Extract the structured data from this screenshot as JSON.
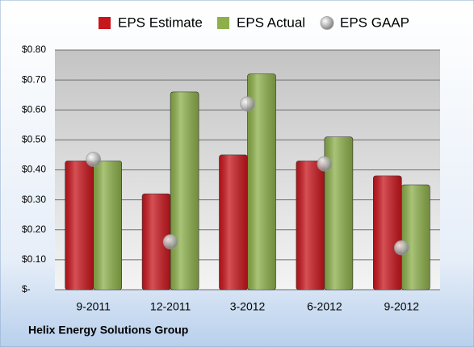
{
  "chart_data": {
    "type": "bar",
    "title": "Helix Energy Solutions Group",
    "categories": [
      "9-2011",
      "12-2011",
      "3-2012",
      "6-2012",
      "9-2012"
    ],
    "series": [
      {
        "name": "EPS Estimate",
        "type": "bar",
        "color": "#c8161d",
        "values": [
          0.43,
          0.32,
          0.45,
          0.43,
          0.38
        ]
      },
      {
        "name": "EPS Actual",
        "type": "bar",
        "color": "#8db04b",
        "values": [
          0.43,
          0.66,
          0.72,
          0.51,
          0.35
        ]
      },
      {
        "name": "EPS GAAP",
        "type": "scatter",
        "color": "#9a9a9a",
        "values": [
          0.435,
          0.16,
          0.62,
          0.42,
          0.14
        ]
      }
    ],
    "ylim": [
      0,
      0.8
    ],
    "yticks": [
      {
        "value": 0,
        "label": "$-"
      },
      {
        "value": 0.1,
        "label": "$0.10"
      },
      {
        "value": 0.2,
        "label": "$0.20"
      },
      {
        "value": 0.3,
        "label": "$0.30"
      },
      {
        "value": 0.4,
        "label": "$0.40"
      },
      {
        "value": 0.5,
        "label": "$0.50"
      },
      {
        "value": 0.6,
        "label": "$0.60"
      },
      {
        "value": 0.7,
        "label": "$0.70"
      },
      {
        "value": 0.8,
        "label": "$0.80"
      }
    ],
    "grid": true,
    "legend": "top"
  }
}
